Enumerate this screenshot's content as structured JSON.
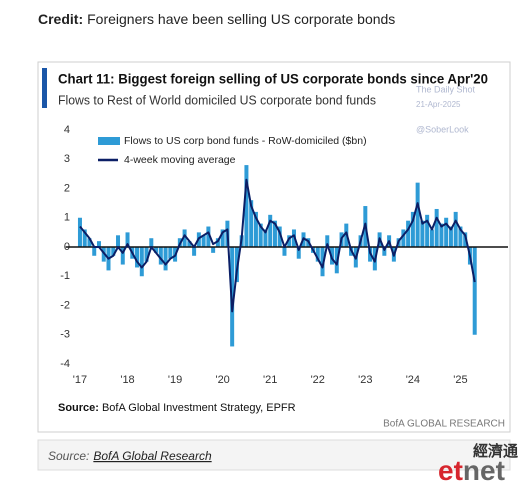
{
  "credit": {
    "label": "Credit:",
    "text": "Foreigners have been selling US corporate bonds"
  },
  "chart_data": {
    "type": "bar",
    "title": "Chart 11: Biggest foreign selling of US corporate bonds since Apr'20",
    "subtitle": "Flows to Rest of World domiciled US corporate bond funds",
    "annotations": [
      "The Daily Shot",
      "21-Apr-2025",
      "@SoberLook"
    ],
    "source": {
      "label": "Source:",
      "text": "BofA Global Investment Strategy, EPFR"
    },
    "brand": "BofA GLOBAL RESEARCH",
    "xlim": [
      2016.7,
      2026.0
    ],
    "xticks": [
      {
        "value": 2017,
        "label": "'17"
      },
      {
        "value": 2018,
        "label": "'18"
      },
      {
        "value": 2019,
        "label": "'19"
      },
      {
        "value": 2020,
        "label": "'20"
      },
      {
        "value": 2021,
        "label": "'21"
      },
      {
        "value": 2022,
        "label": "'22"
      },
      {
        "value": 2023,
        "label": "'23"
      },
      {
        "value": 2024,
        "label": "'24"
      },
      {
        "value": 2025,
        "label": "'25"
      }
    ],
    "ylim": [
      -4,
      4
    ],
    "yticks": [
      -4,
      -3,
      -2,
      -1,
      0,
      1,
      2,
      3,
      4
    ],
    "grid": false,
    "legend": "top-left",
    "x": [
      2017.0,
      2017.1,
      2017.2,
      2017.3,
      2017.4,
      2017.5,
      2017.6,
      2017.7,
      2017.8,
      2017.9,
      2018.0,
      2018.1,
      2018.2,
      2018.3,
      2018.4,
      2018.5,
      2018.6,
      2018.7,
      2018.8,
      2018.9,
      2019.0,
      2019.1,
      2019.2,
      2019.3,
      2019.4,
      2019.5,
      2019.6,
      2019.7,
      2019.8,
      2019.9,
      2020.0,
      2020.1,
      2020.2,
      2020.3,
      2020.4,
      2020.5,
      2020.6,
      2020.7,
      2020.8,
      2020.9,
      2021.0,
      2021.1,
      2021.2,
      2021.3,
      2021.4,
      2021.5,
      2021.6,
      2021.7,
      2021.8,
      2021.9,
      2022.0,
      2022.1,
      2022.2,
      2022.3,
      2022.4,
      2022.5,
      2022.6,
      2022.7,
      2022.8,
      2022.9,
      2023.0,
      2023.1,
      2023.2,
      2023.3,
      2023.4,
      2023.5,
      2023.6,
      2023.7,
      2023.8,
      2023.9,
      2024.0,
      2024.1,
      2024.2,
      2024.3,
      2024.4,
      2024.5,
      2024.6,
      2024.7,
      2024.8,
      2024.9,
      2025.0,
      2025.1,
      2025.2,
      2025.3
    ],
    "series": [
      {
        "name": "Flows to US corp bond funds - RoW-domiciled ($bn)",
        "type": "bar",
        "color": "#2e9bd6",
        "values": [
          1.0,
          0.6,
          0.3,
          -0.3,
          0.2,
          -0.5,
          -0.8,
          -0.3,
          0.4,
          -0.6,
          0.5,
          -0.4,
          -0.7,
          -1.0,
          -0.5,
          0.3,
          -0.2,
          -0.6,
          -0.8,
          -0.4,
          -0.5,
          0.3,
          0.6,
          0.2,
          -0.3,
          0.5,
          0.4,
          0.7,
          -0.2,
          0.3,
          0.6,
          0.9,
          -3.4,
          -1.2,
          0.4,
          2.8,
          1.6,
          1.2,
          0.8,
          0.6,
          1.1,
          0.9,
          0.7,
          -0.3,
          0.4,
          0.6,
          -0.4,
          0.5,
          0.3,
          -0.2,
          -0.5,
          -1.0,
          0.4,
          -0.6,
          -0.9,
          0.5,
          0.8,
          -0.3,
          -0.7,
          0.4,
          1.4,
          -0.5,
          -0.8,
          0.5,
          -0.3,
          0.4,
          -0.5,
          0.3,
          0.6,
          0.9,
          1.2,
          2.2,
          0.9,
          1.1,
          0.6,
          1.3,
          0.8,
          1.0,
          0.7,
          1.2,
          0.7,
          0.5,
          -0.6,
          -3.0
        ]
      },
      {
        "name": "4-week moving average",
        "type": "line",
        "color": "#0b1f66",
        "values": [
          0.7,
          0.5,
          0.3,
          0.0,
          0.0,
          -0.2,
          -0.4,
          -0.3,
          0.0,
          -0.2,
          0.1,
          -0.2,
          -0.5,
          -0.7,
          -0.5,
          0.0,
          -0.2,
          -0.4,
          -0.6,
          -0.4,
          -0.3,
          0.1,
          0.4,
          0.2,
          0.0,
          0.3,
          0.4,
          0.5,
          0.1,
          0.2,
          0.5,
          0.6,
          -2.2,
          -0.8,
          0.3,
          2.3,
          1.4,
          1.0,
          0.7,
          0.5,
          0.9,
          0.8,
          0.5,
          0.0,
          0.3,
          0.4,
          -0.1,
          0.3,
          0.2,
          -0.1,
          -0.4,
          -0.7,
          0.1,
          -0.4,
          -0.6,
          0.3,
          0.5,
          -0.1,
          -0.4,
          0.2,
          0.8,
          -0.2,
          -0.5,
          0.3,
          -0.1,
          0.2,
          -0.3,
          0.2,
          0.4,
          0.6,
          0.9,
          1.5,
          0.8,
          0.9,
          0.6,
          1.0,
          0.7,
          0.8,
          0.6,
          0.9,
          0.6,
          0.4,
          -0.3,
          -1.2
        ]
      }
    ]
  },
  "source_box": {
    "label": "Source:",
    "link": "BofA Global Research"
  },
  "logo": {
    "chinese": "經濟通",
    "latin_red": "et",
    "latin_gray": "net"
  }
}
